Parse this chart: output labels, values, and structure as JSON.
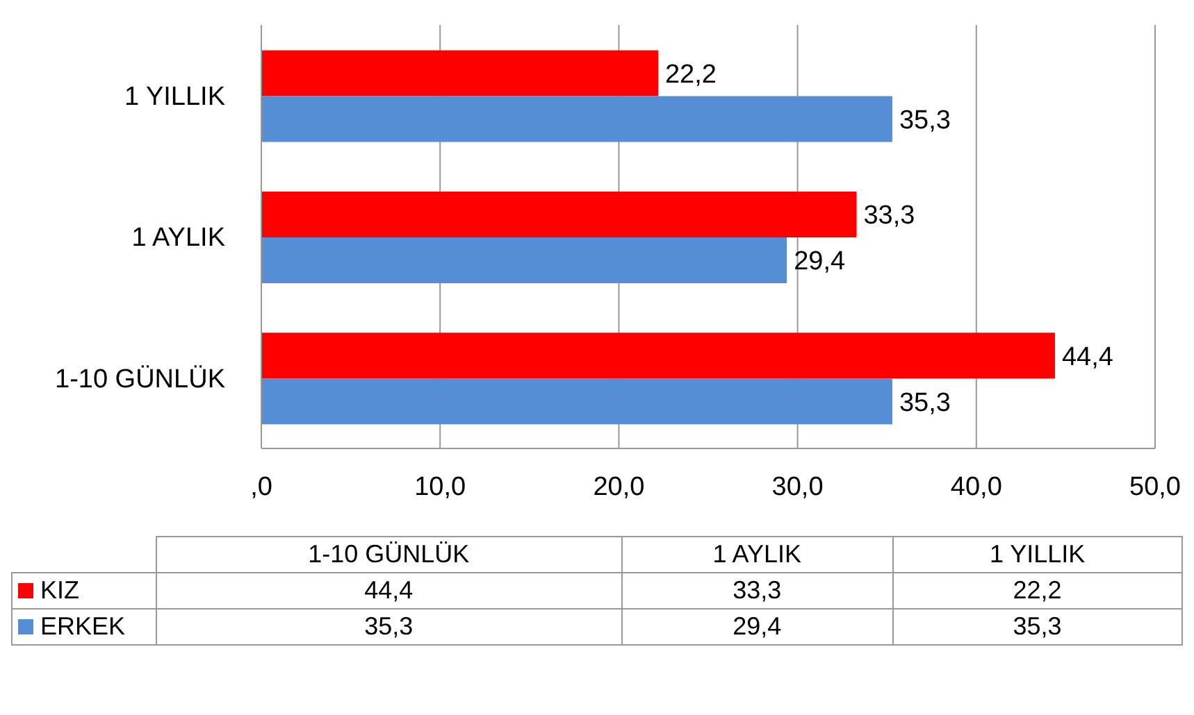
{
  "chart_data": {
    "type": "bar",
    "orientation": "horizontal",
    "categories": [
      "1 YILLIK",
      "1 AYLIK",
      "1-10 GÜNLÜK"
    ],
    "series": [
      {
        "name": "KIZ",
        "color": "#ff0000",
        "values": [
          22.2,
          33.3,
          44.4
        ],
        "value_labels": [
          "22,2",
          "33,3",
          "44,4"
        ]
      },
      {
        "name": "ERKEK",
        "color": "#558ed5",
        "values": [
          35.3,
          29.4,
          35.3
        ],
        "value_labels": [
          "35,3",
          "29,4",
          "35,3"
        ]
      }
    ],
    "xlim": [
      0,
      50
    ],
    "xticks": [
      {
        "value": 0,
        "label": ",0"
      },
      {
        "value": 10,
        "label": "10,0"
      },
      {
        "value": 20,
        "label": "20,0"
      },
      {
        "value": 30,
        "label": "30,0"
      },
      {
        "value": 40,
        "label": "40,0"
      },
      {
        "value": 50,
        "label": "50,0"
      }
    ],
    "grid": "x",
    "legend": "bottom"
  }
}
